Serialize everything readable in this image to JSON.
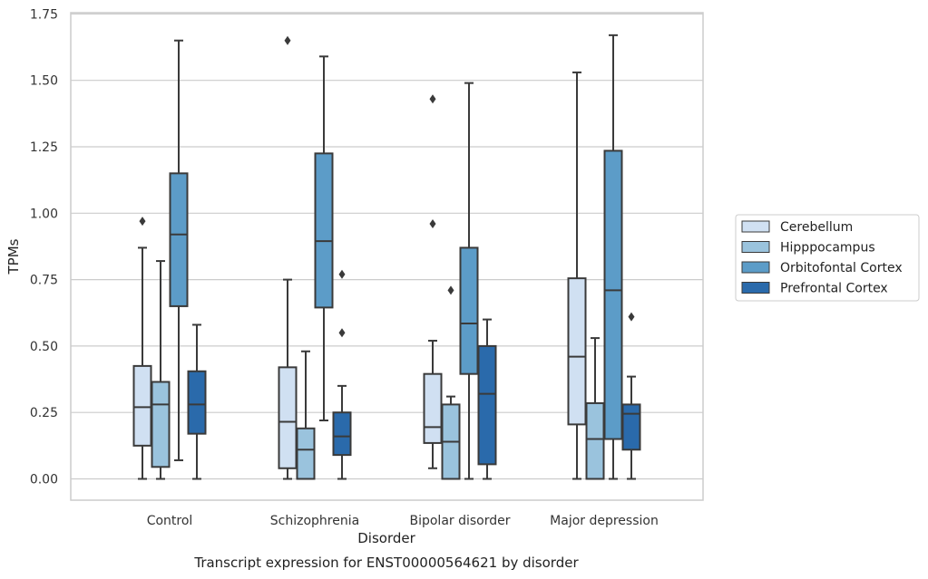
{
  "chart_data": {
    "type": "box",
    "title": "",
    "caption": "Transcript expression for ENST00000564621 by disorder",
    "xlabel": "Disorder",
    "ylabel": "TPMs",
    "ylim": [
      -0.08,
      1.75
    ],
    "yticks": [
      0.0,
      0.25,
      0.5,
      0.75,
      1.0,
      1.25,
      1.5,
      1.75
    ],
    "ytick_labels": [
      "0.00",
      "0.25",
      "0.50",
      "0.75",
      "1.00",
      "1.25",
      "1.50",
      "1.75"
    ],
    "grid": true,
    "legend_position": "right",
    "categories": [
      "Control",
      "Schizophrenia",
      "Bipolar disorder",
      "Major depression"
    ],
    "series": [
      {
        "name": "Cerebellum",
        "color": "#d0e0f2",
        "boxes": [
          {
            "whisker_low": 0.0,
            "q1": 0.125,
            "median": 0.27,
            "q3": 0.425,
            "whisker_high": 0.87,
            "outliers": [
              0.97
            ]
          },
          {
            "whisker_low": 0.0,
            "q1": 0.04,
            "median": 0.215,
            "q3": 0.42,
            "whisker_high": 0.75,
            "outliers": [
              1.65
            ]
          },
          {
            "whisker_low": 0.04,
            "q1": 0.135,
            "median": 0.195,
            "q3": 0.395,
            "whisker_high": 0.52,
            "outliers": [
              0.96,
              1.43
            ]
          },
          {
            "whisker_low": 0.0,
            "q1": 0.205,
            "median": 0.46,
            "q3": 0.755,
            "whisker_high": 1.53,
            "outliers": []
          }
        ]
      },
      {
        "name": "Hipppocampus",
        "color": "#9ac3dd",
        "boxes": [
          {
            "whisker_low": 0.0,
            "q1": 0.045,
            "median": 0.28,
            "q3": 0.365,
            "whisker_high": 0.82,
            "outliers": []
          },
          {
            "whisker_low": 0.0,
            "q1": 0.0,
            "median": 0.11,
            "q3": 0.19,
            "whisker_high": 0.48,
            "outliers": []
          },
          {
            "whisker_low": 0.0,
            "q1": 0.0,
            "median": 0.14,
            "q3": 0.28,
            "whisker_high": 0.31,
            "outliers": [
              0.71
            ]
          },
          {
            "whisker_low": 0.0,
            "q1": 0.0,
            "median": 0.15,
            "q3": 0.285,
            "whisker_high": 0.53,
            "outliers": []
          }
        ]
      },
      {
        "name": "Orbitofontal Cortex",
        "color": "#5c9cc8",
        "boxes": [
          {
            "whisker_low": 0.07,
            "q1": 0.65,
            "median": 0.92,
            "q3": 1.15,
            "whisker_high": 1.65,
            "outliers": []
          },
          {
            "whisker_low": 0.22,
            "q1": 0.645,
            "median": 0.895,
            "q3": 1.225,
            "whisker_high": 1.59,
            "outliers": []
          },
          {
            "whisker_low": 0.0,
            "q1": 0.395,
            "median": 0.585,
            "q3": 0.87,
            "whisker_high": 1.49,
            "outliers": []
          },
          {
            "whisker_low": 0.0,
            "q1": 0.15,
            "median": 0.71,
            "q3": 1.235,
            "whisker_high": 1.67,
            "outliers": []
          }
        ]
      },
      {
        "name": "Prefrontal Cortex",
        "color": "#2a6aab",
        "boxes": [
          {
            "whisker_low": 0.0,
            "q1": 0.17,
            "median": 0.28,
            "q3": 0.405,
            "whisker_high": 0.58,
            "outliers": []
          },
          {
            "whisker_low": 0.0,
            "q1": 0.09,
            "median": 0.16,
            "q3": 0.25,
            "whisker_high": 0.35,
            "outliers": [
              0.55,
              0.77
            ]
          },
          {
            "whisker_low": 0.0,
            "q1": 0.055,
            "median": 0.32,
            "q3": 0.5,
            "whisker_high": 0.6,
            "outliers": []
          },
          {
            "whisker_low": 0.0,
            "q1": 0.11,
            "median": 0.245,
            "q3": 0.28,
            "whisker_high": 0.385,
            "outliers": [
              0.61
            ]
          }
        ]
      }
    ]
  }
}
